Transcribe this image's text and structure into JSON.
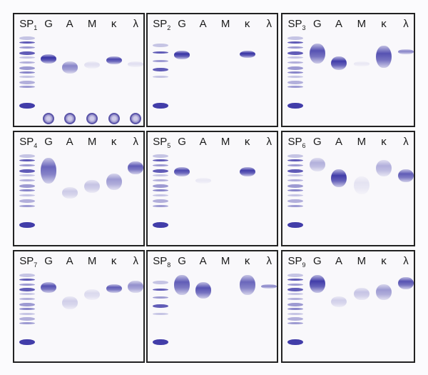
{
  "colors": {
    "stain": "#3d3aa6",
    "stain_dark": "#1f1c8a",
    "panel_bg": "#f9f8fb",
    "border": "#222222"
  },
  "panels": [
    {
      "sample_prefix": "SP",
      "sample_number": "1",
      "lanes": [
        "G",
        "A",
        "M",
        "κ",
        "λ"
      ],
      "sp_pattern": "dense",
      "sample_wells": true,
      "bands": [
        {
          "lane": 1,
          "pos": 0.24,
          "w": 0.1,
          "int": 0.95
        },
        {
          "lane": 2,
          "pos": 0.32,
          "w": 0.13,
          "int": 0.55
        },
        {
          "lane": 3,
          "pos": 0.32,
          "w": 0.08,
          "int": 0.12
        },
        {
          "lane": 4,
          "pos": 0.26,
          "w": 0.09,
          "int": 0.85
        },
        {
          "lane": 5,
          "pos": 0.32,
          "w": 0.06,
          "int": 0.12
        }
      ]
    },
    {
      "sample_prefix": "SP",
      "sample_number": "2",
      "lanes": [
        "G",
        "A",
        "M",
        "κ",
        "λ"
      ],
      "sp_pattern": "sparse",
      "sample_wells": false,
      "bands": [
        {
          "lane": 1,
          "pos": 0.2,
          "w": 0.09,
          "int": 0.95
        },
        {
          "lane": 4,
          "pos": 0.2,
          "w": 0.08,
          "int": 0.95
        }
      ]
    },
    {
      "sample_prefix": "SP",
      "sample_number": "3",
      "lanes": [
        "G",
        "A",
        "M",
        "κ",
        "λ"
      ],
      "sp_pattern": "dense",
      "sample_wells": false,
      "bands": [
        {
          "lane": 1,
          "pos": 0.12,
          "w": 0.22,
          "int": 0.8
        },
        {
          "lane": 2,
          "pos": 0.26,
          "w": 0.15,
          "int": 0.9
        },
        {
          "lane": 3,
          "pos": 0.32,
          "w": 0.05,
          "int": 0.08
        },
        {
          "lane": 4,
          "pos": 0.14,
          "w": 0.25,
          "int": 0.8
        },
        {
          "lane": 5,
          "pos": 0.18,
          "w": 0.06,
          "int": 0.55
        }
      ]
    },
    {
      "sample_prefix": "SP",
      "sample_number": "4",
      "lanes": [
        "G",
        "A",
        "M",
        "κ",
        "λ"
      ],
      "sp_pattern": "dense",
      "sample_wells": false,
      "bands": [
        {
          "lane": 1,
          "pos": 0.08,
          "w": 0.28,
          "int": 0.7
        },
        {
          "lane": 2,
          "pos": 0.4,
          "w": 0.12,
          "int": 0.22
        },
        {
          "lane": 3,
          "pos": 0.32,
          "w": 0.14,
          "int": 0.25
        },
        {
          "lane": 4,
          "pos": 0.25,
          "w": 0.18,
          "int": 0.45
        },
        {
          "lane": 5,
          "pos": 0.12,
          "w": 0.14,
          "int": 0.75
        }
      ]
    },
    {
      "sample_prefix": "SP",
      "sample_number": "5",
      "lanes": [
        "G",
        "A",
        "M",
        "κ",
        "λ"
      ],
      "sp_pattern": "dense",
      "sample_wells": false,
      "bands": [
        {
          "lane": 1,
          "pos": 0.18,
          "w": 0.1,
          "int": 0.85
        },
        {
          "lane": 2,
          "pos": 0.3,
          "w": 0.06,
          "int": 0.08
        },
        {
          "lane": 4,
          "pos": 0.18,
          "w": 0.1,
          "int": 0.9
        }
      ]
    },
    {
      "sample_prefix": "SP",
      "sample_number": "6",
      "lanes": [
        "G",
        "A",
        "M",
        "κ",
        "λ"
      ],
      "sp_pattern": "dense",
      "sample_wells": false,
      "bands": [
        {
          "lane": 1,
          "pos": 0.08,
          "w": 0.15,
          "int": 0.35
        },
        {
          "lane": 2,
          "pos": 0.2,
          "w": 0.2,
          "int": 0.9
        },
        {
          "lane": 3,
          "pos": 0.28,
          "w": 0.2,
          "int": 0.1
        },
        {
          "lane": 4,
          "pos": 0.1,
          "w": 0.18,
          "int": 0.35
        },
        {
          "lane": 5,
          "pos": 0.2,
          "w": 0.14,
          "int": 0.75
        }
      ]
    },
    {
      "sample_prefix": "SP",
      "sample_number": "7",
      "lanes": [
        "G",
        "A",
        "M",
        "κ",
        "λ"
      ],
      "sp_pattern": "dense",
      "sample_wells": false,
      "bands": [
        {
          "lane": 1,
          "pos": 0.14,
          "w": 0.12,
          "int": 0.8
        },
        {
          "lane": 2,
          "pos": 0.3,
          "w": 0.14,
          "int": 0.2
        },
        {
          "lane": 3,
          "pos": 0.22,
          "w": 0.12,
          "int": 0.15
        },
        {
          "lane": 4,
          "pos": 0.16,
          "w": 0.1,
          "int": 0.75
        },
        {
          "lane": 5,
          "pos": 0.12,
          "w": 0.14,
          "int": 0.5
        }
      ]
    },
    {
      "sample_prefix": "SP",
      "sample_number": "8",
      "lanes": [
        "G",
        "A",
        "M",
        "κ",
        "λ"
      ],
      "sp_pattern": "sparse",
      "sample_wells": false,
      "bands": [
        {
          "lane": 1,
          "pos": 0.06,
          "w": 0.22,
          "int": 0.75
        },
        {
          "lane": 2,
          "pos": 0.14,
          "w": 0.18,
          "int": 0.8
        },
        {
          "lane": 4,
          "pos": 0.06,
          "w": 0.22,
          "int": 0.7
        },
        {
          "lane": 5,
          "pos": 0.16,
          "w": 0.05,
          "int": 0.55
        }
      ]
    },
    {
      "sample_prefix": "SP",
      "sample_number": "9",
      "lanes": [
        "G",
        "A",
        "M",
        "κ",
        "λ"
      ],
      "sp_pattern": "dense",
      "sample_wells": false,
      "bands": [
        {
          "lane": 1,
          "pos": 0.06,
          "w": 0.2,
          "int": 0.9
        },
        {
          "lane": 2,
          "pos": 0.3,
          "w": 0.12,
          "int": 0.2
        },
        {
          "lane": 3,
          "pos": 0.2,
          "w": 0.14,
          "int": 0.25
        },
        {
          "lane": 4,
          "pos": 0.16,
          "w": 0.18,
          "int": 0.45
        },
        {
          "lane": 5,
          "pos": 0.08,
          "w": 0.14,
          "int": 0.8
        }
      ]
    }
  ]
}
